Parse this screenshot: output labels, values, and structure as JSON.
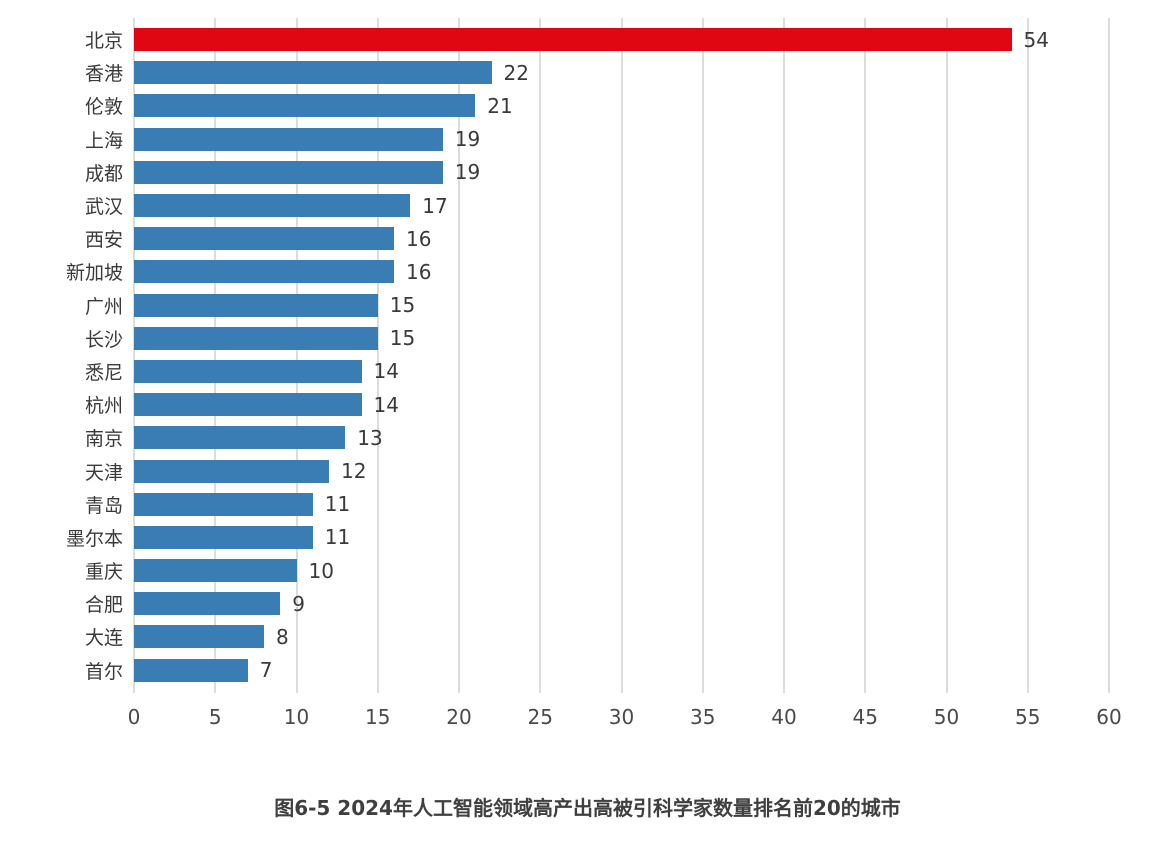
{
  "chart_data": {
    "type": "bar",
    "orientation": "horizontal",
    "title": "",
    "caption": "图6-5 2024年人工智能领域高产出高被引科学家数量排名前20的城市",
    "categories": [
      "北京",
      "香港",
      "伦敦",
      "上海",
      "成都",
      "武汉",
      "西安",
      "新加坡",
      "广州",
      "长沙",
      "悉尼",
      "杭州",
      "南京",
      "天津",
      "青岛",
      "墨尔本",
      "重庆",
      "合肥",
      "大连",
      "首尔"
    ],
    "values": [
      54,
      22,
      21,
      19,
      19,
      17,
      16,
      16,
      15,
      15,
      14,
      14,
      13,
      12,
      11,
      11,
      10,
      9,
      8,
      7
    ],
    "highlight_index": 0,
    "highlight_color": "#e00713",
    "bar_color": "#3a7db4",
    "grid": true,
    "gridline_color": "#dcdcdc",
    "xlim": [
      0,
      60
    ],
    "xticks": [
      0,
      5,
      10,
      15,
      20,
      25,
      30,
      35,
      40,
      45,
      50,
      55,
      60
    ],
    "xlabel": "",
    "ylabel": "",
    "legend": "none"
  }
}
